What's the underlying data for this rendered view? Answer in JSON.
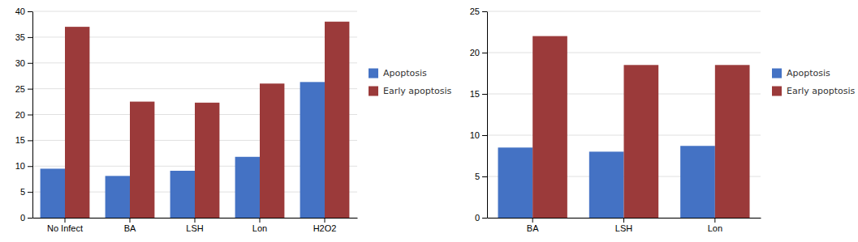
{
  "chart_data": [
    {
      "type": "bar",
      "categories": [
        "No Infect",
        "BA",
        "LSH",
        "Lon",
        "H2O2"
      ],
      "series": [
        {
          "name": "Apoptosis",
          "color": "#4472C4",
          "values": [
            9.5,
            8.1,
            9.1,
            11.8,
            26.3
          ]
        },
        {
          "name": "Early apoptosis",
          "color": "#9B3A3A",
          "values": [
            37.0,
            22.5,
            22.3,
            26.0,
            38.0
          ]
        }
      ],
      "ylim": [
        0,
        40
      ],
      "yticks": [
        0,
        5,
        10,
        15,
        20,
        25,
        30,
        35,
        40
      ],
      "grid": true,
      "legend": "right"
    },
    {
      "type": "bar",
      "categories": [
        "BA",
        "LSH",
        "Lon"
      ],
      "series": [
        {
          "name": "Apoptosis",
          "color": "#4472C4",
          "values": [
            8.5,
            8.0,
            8.7
          ]
        },
        {
          "name": "Early apoptosis",
          "color": "#9B3A3A",
          "values": [
            22.0,
            18.5,
            18.5
          ]
        }
      ],
      "ylim": [
        0,
        25
      ],
      "yticks": [
        0,
        5,
        10,
        15,
        20,
        25
      ],
      "grid": true,
      "legend": "right"
    }
  ]
}
